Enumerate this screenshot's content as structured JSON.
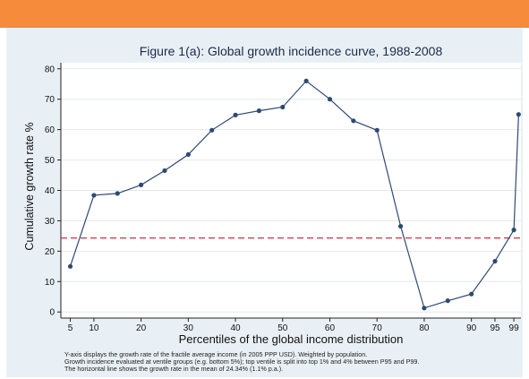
{
  "chart_data": {
    "type": "line",
    "title": "Figure 1(a): Global growth incidence curve, 1988-2008",
    "xlabel": "Percentiles of the global income distribution",
    "ylabel": "Cumulative growth rate %",
    "x_ticks": [
      5,
      10,
      20,
      30,
      40,
      50,
      60,
      70,
      80,
      90,
      95,
      99
    ],
    "y_ticks": [
      0,
      10,
      20,
      30,
      40,
      50,
      60,
      70,
      80
    ],
    "xlim": [
      3,
      100.5
    ],
    "ylim": [
      -2,
      82
    ],
    "grid": true,
    "series": [
      {
        "x": [
          5,
          10,
          15,
          20,
          25,
          30,
          35,
          40,
          45,
          50,
          55,
          60,
          65,
          70,
          75,
          80,
          85,
          90,
          95,
          99,
          100
        ],
        "y": [
          15,
          38.4,
          39,
          41.8,
          46.5,
          51.8,
          59.8,
          64.8,
          66.2,
          67.4,
          76,
          70,
          62.9,
          59.8,
          28.2,
          1.3,
          3.7,
          5.9,
          16.7,
          27,
          65
        ],
        "color": "#2e4a73"
      }
    ],
    "reference_line": {
      "y": 24.34,
      "color": "#cc3344",
      "style": "dashed"
    }
  },
  "notes": {
    "line1": "Y-axis displays the growth rate of the fractile average income (in 2005 PPP USD). Weighted by population.",
    "line2": "Growth incidence evaluated at ventile groups (e.g. bottom 5%); top ventile is split into top 1% and 4% between P95 and P99.",
    "line3": "The horizontal line shows the growth rate in the mean of 24.34% (1.1% p.a.)."
  }
}
